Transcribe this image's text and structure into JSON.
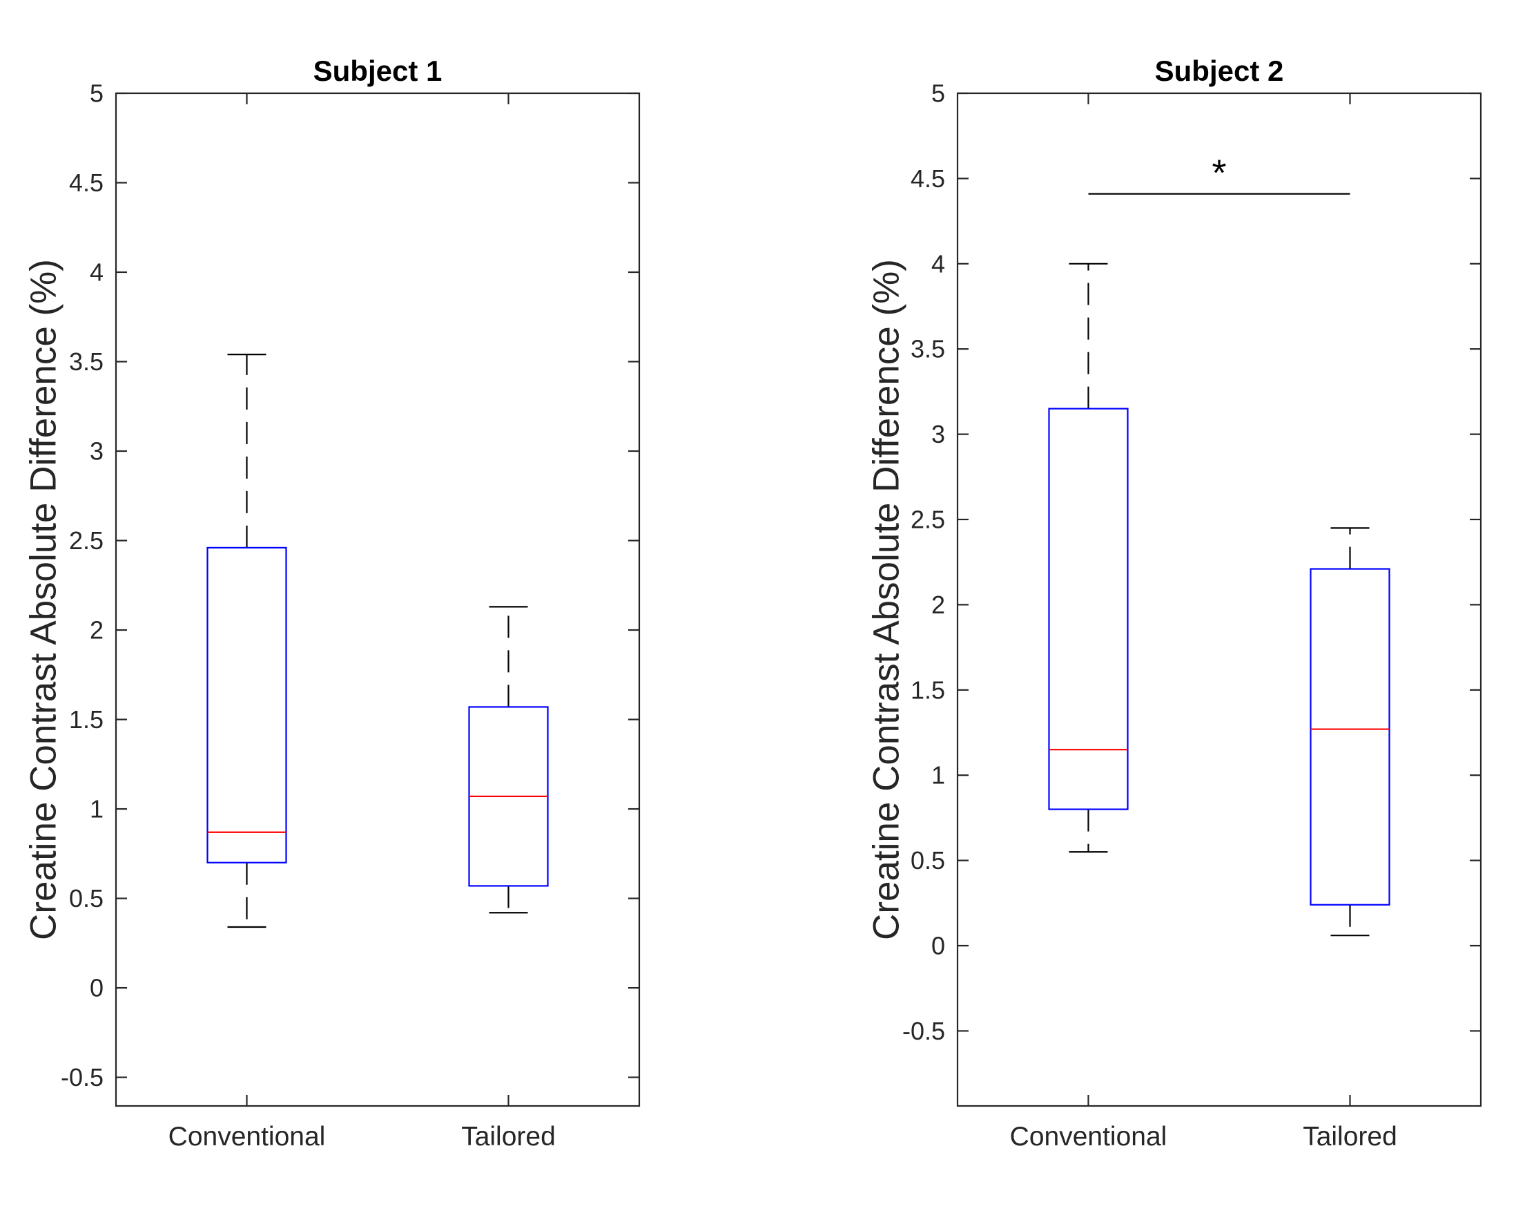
{
  "chart_data": [
    {
      "type": "box",
      "title": "Subject 1",
      "xlabel": "",
      "ylabel": "Creatine Contrast Absolute Difference (%)",
      "ylim": [
        -0.66,
        5
      ],
      "yticks": [
        -0.5,
        0,
        0.5,
        1,
        1.5,
        2,
        2.5,
        3,
        3.5,
        4,
        4.5,
        5
      ],
      "ytick_labels": [
        "-0.5",
        "0",
        "0.5",
        "1",
        "1.5",
        "2",
        "2.5",
        "3",
        "3.5",
        "4",
        "4.5",
        "5"
      ],
      "categories": [
        "Conventional",
        "Tailored"
      ],
      "boxes": [
        {
          "min": 0.34,
          "q1": 0.7,
          "median": 0.87,
          "q3": 2.46,
          "max": 3.54
        },
        {
          "min": 0.42,
          "q1": 0.57,
          "median": 1.07,
          "q3": 1.57,
          "max": 2.13
        }
      ],
      "significance": null
    },
    {
      "type": "box",
      "title": "Subject 2",
      "xlabel": "",
      "ylabel": "Creatine Contrast Absolute Difference (%)",
      "ylim": [
        -0.94,
        5
      ],
      "yticks": [
        -0.5,
        0,
        0.5,
        1,
        1.5,
        2,
        2.5,
        3,
        3.5,
        4,
        4.5,
        5
      ],
      "ytick_labels": [
        "-0.5",
        "0",
        "0.5",
        "1",
        "1.5",
        "2",
        "2.5",
        "3",
        "3.5",
        "4",
        "4.5",
        "5"
      ],
      "categories": [
        "Conventional",
        "Tailored"
      ],
      "boxes": [
        {
          "min": 0.55,
          "q1": 0.8,
          "median": 1.15,
          "q3": 3.15,
          "max": 4.0
        },
        {
          "min": 0.06,
          "q1": 0.24,
          "median": 1.27,
          "q3": 2.21,
          "max": 2.45
        }
      ],
      "significance": {
        "between": [
          0,
          1
        ],
        "y": 4.41,
        "marker": "*"
      }
    }
  ]
}
